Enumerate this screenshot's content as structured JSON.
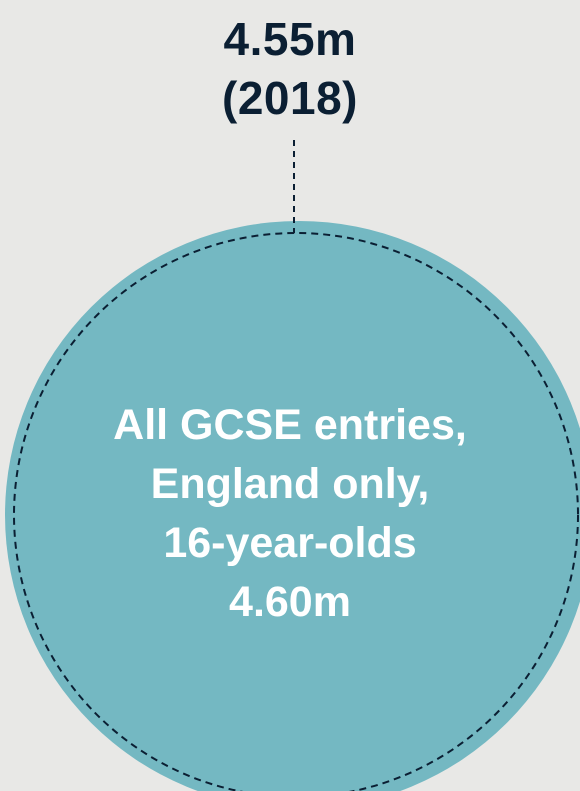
{
  "comparison_label": {
    "value": "4.55m",
    "year": "(2018)"
  },
  "main_circle": {
    "line1": "All GCSE entries,",
    "line2": "England only,",
    "line3": "16-year-olds",
    "value": "4.60m"
  },
  "colors": {
    "background": "#e8e8e6",
    "circle_fill": "#74b8c2",
    "dark_text": "#0b1f33",
    "white_text": "#ffffff"
  }
}
